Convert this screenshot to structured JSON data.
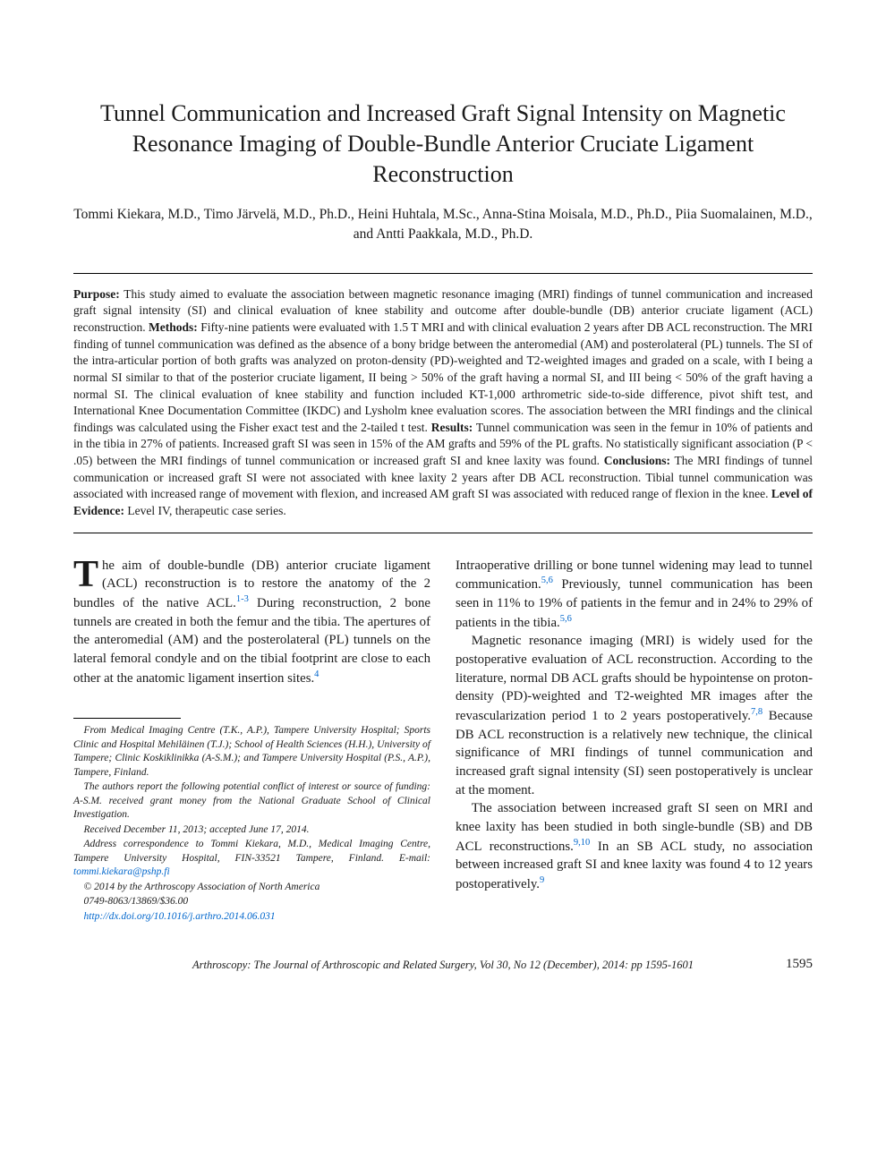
{
  "title": "Tunnel Communication and Increased Graft Signal Intensity on Magnetic Resonance Imaging of Double-Bundle Anterior Cruciate Ligament Reconstruction",
  "authors": "Tommi Kiekara, M.D., Timo Järvelä, M.D., Ph.D., Heini Huhtala, M.Sc., Anna-Stina Moisala, M.D., Ph.D., Piia Suomalainen, M.D., and Antti Paakkala, M.D., Ph.D.",
  "abstract": {
    "purpose_label": "Purpose:",
    "purpose": " This study aimed to evaluate the association between magnetic resonance imaging (MRI) findings of tunnel communication and increased graft signal intensity (SI) and clinical evaluation of knee stability and outcome after double-bundle (DB) anterior cruciate ligament (ACL) reconstruction. ",
    "methods_label": "Methods:",
    "methods": " Fifty-nine patients were evaluated with 1.5 T MRI and with clinical evaluation 2 years after DB ACL reconstruction. The MRI finding of tunnel communication was defined as the absence of a bony bridge between the anteromedial (AM) and posterolateral (PL) tunnels. The SI of the intra-articular portion of both grafts was analyzed on proton-density (PD)-weighted and T2-weighted images and graded on a scale, with I being a normal SI similar to that of the posterior cruciate ligament, II being > 50% of the graft having a normal SI, and III being < 50% of the graft having a normal SI. The clinical evaluation of knee stability and function included KT-1,000 arthrometric side-to-side difference, pivot shift test, and International Knee Documentation Committee (IKDC) and Lysholm knee evaluation scores. The association between the MRI findings and the clinical findings was calculated using the Fisher exact test and the 2-tailed t test. ",
    "results_label": "Results:",
    "results": " Tunnel communication was seen in the femur in 10% of patients and in the tibia in 27% of patients. Increased graft SI was seen in 15% of the AM grafts and 59% of the PL grafts. No statistically significant association (P < .05) between the MRI findings of tunnel communication or increased graft SI and knee laxity was found. ",
    "conclusions_label": "Conclusions:",
    "conclusions": " The MRI findings of tunnel communication or increased graft SI were not associated with knee laxity 2 years after DB ACL reconstruction. Tibial tunnel communication was associated with increased range of movement with flexion, and increased AM graft SI was associated with reduced range of flexion in the knee. ",
    "loe_label": "Level of Evidence:",
    "loe": " Level IV, therapeutic case series."
  },
  "body": {
    "col1": {
      "p1_dropcap": "T",
      "p1_a": "he aim of double-bundle (DB) anterior cruciate ligament (ACL) reconstruction is to restore the anatomy of the 2 bundles of the native ACL.",
      "p1_ref1": "1-3",
      "p1_b": " During reconstruction, 2 bone tunnels are created in both the femur and the tibia. The apertures of the anteromedial (AM) and the posterolateral (PL) tunnels on the lateral femoral condyle and on the tibial footprint are close to each other at the anatomic ligament insertion sites.",
      "p1_ref2": "4"
    },
    "col2": {
      "p1_a": "Intraoperative drilling or bone tunnel widening may lead to tunnel communication.",
      "p1_ref1": "5,6",
      "p1_b": " Previously, tunnel communication has been seen in 11% to 19% of patients in the femur and in 24% to 29% of patients in the tibia.",
      "p1_ref2": "5,6",
      "p2_a": "Magnetic resonance imaging (MRI) is widely used for the postoperative evaluation of ACL reconstruction. According to the literature, normal DB ACL grafts should be hypointense on proton-density (PD)-weighted and T2-weighted MR images after the revascularization period 1 to 2 years postoperatively.",
      "p2_ref1": "7,8",
      "p2_b": " Because DB ACL reconstruction is a relatively new technique, the clinical significance of MRI findings of tunnel communication and increased graft signal intensity (SI) seen postoperatively is unclear at the moment.",
      "p3_a": "The association between increased graft SI seen on MRI and knee laxity has been studied in both single-bundle (SB) and DB ACL reconstructions.",
      "p3_ref1": "9,10",
      "p3_b": " In an SB ACL study, no association between increased graft SI and knee laxity was found 4 to 12 years postoperatively.",
      "p3_ref2": "9"
    }
  },
  "footnotes": {
    "f1": "From Medical Imaging Centre (T.K., A.P.), Tampere University Hospital; Sports Clinic and Hospital Mehiläinen (T.J.); School of Health Sciences (H.H.), University of Tampere; Clinic Koskiklinikka (A-S.M.); and Tampere University Hospital (P.S., A.P.), Tampere, Finland.",
    "f2": "The authors report the following potential conflict of interest or source of funding: A-S.M. received grant money from the National Graduate School of Clinical Investigation.",
    "f3": "Received December 11, 2013; accepted June 17, 2014.",
    "f4_a": "Address correspondence to Tommi Kiekara, M.D., Medical Imaging Centre, Tampere University Hospital, FIN-33521 Tampere, Finland. E-mail: ",
    "f4_email": "tommi.kiekara@pshp.fi",
    "f5": "© 2014 by the Arthroscopy Association of North America",
    "f6": "0749-8063/13869/$36.00",
    "f7": "http://dx.doi.org/10.1016/j.arthro.2014.06.031"
  },
  "footer": {
    "journal": "Arthroscopy: The Journal of Arthroscopic and Related Surgery, Vol 30, No 12 (December), 2014: pp 1595-1601",
    "page": "1595"
  },
  "colors": {
    "text": "#1a1a1a",
    "link": "#0066cc",
    "background": "#ffffff"
  },
  "typography": {
    "title_fontsize": 26,
    "authors_fontsize": 15.5,
    "abstract_fontsize": 13.5,
    "body_fontsize": 14.8,
    "footnote_fontsize": 11.5,
    "footer_fontsize": 12.5,
    "font_family": "Times New Roman"
  }
}
